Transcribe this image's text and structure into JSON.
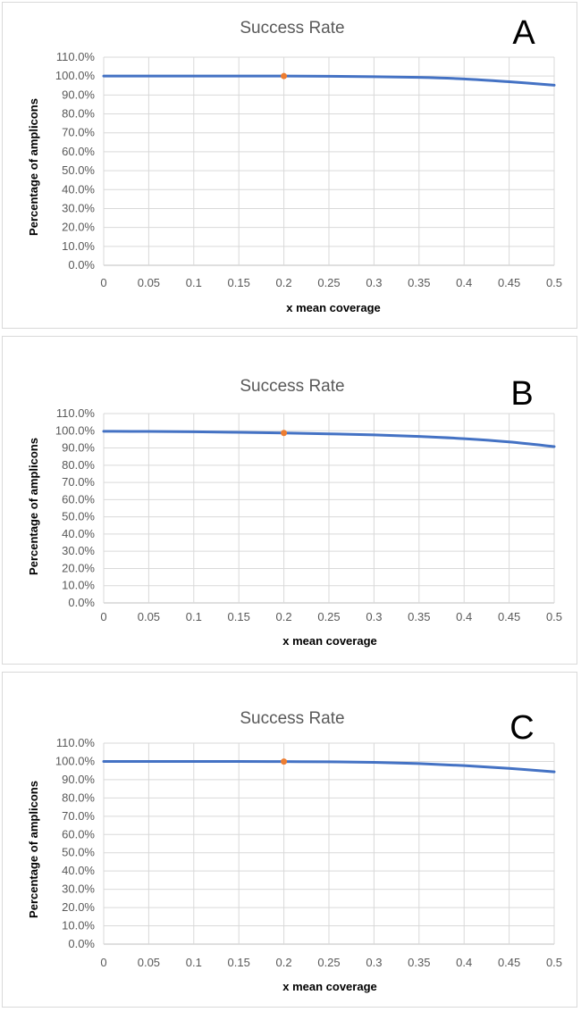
{
  "colors": {
    "series": "#4472C4",
    "marker": "#ED7D31"
  },
  "chart_data": [
    {
      "type": "line",
      "panel_letter": "A",
      "title": "Success Rate",
      "xlabel": "x mean coverage",
      "ylabel": "Percentage of amplicons",
      "xlim": [
        0,
        0.5
      ],
      "ylim": [
        0,
        1.1
      ],
      "xticks": [
        "0",
        "0.05",
        "0.1",
        "0.15",
        "0.2",
        "0.25",
        "0.3",
        "0.35",
        "0.4",
        "0.45",
        "0.5"
      ],
      "yticks": [
        "0.0%",
        "10.0%",
        "20.0%",
        "30.0%",
        "40.0%",
        "50.0%",
        "60.0%",
        "70.0%",
        "80.0%",
        "90.0%",
        "100.0%",
        "110.0%"
      ],
      "grid": true,
      "series": [
        {
          "name": "Success rate",
          "x": [
            0,
            0.05,
            0.1,
            0.15,
            0.2,
            0.25,
            0.3,
            0.35,
            0.4,
            0.45,
            0.5
          ],
          "y": [
            1.0,
            1.0,
            1.0,
            1.0,
            1.0,
            0.999,
            0.997,
            0.993,
            0.985,
            0.97,
            0.952
          ]
        }
      ],
      "highlight_point": {
        "x": 0.2,
        "y": 1.0
      }
    },
    {
      "type": "line",
      "panel_letter": "B",
      "title": "Success Rate",
      "xlabel": "x mean coverage",
      "ylabel": "Percentage of amplicons",
      "xlim": [
        0,
        0.5
      ],
      "ylim": [
        0,
        1.1
      ],
      "xticks": [
        "0",
        "0.05",
        "0.1",
        "0.15",
        "0.2",
        "0.25",
        "0.3",
        "0.35",
        "0.4",
        "0.45",
        "0.5"
      ],
      "yticks": [
        "0.0%",
        "10.0%",
        "20.0%",
        "30.0%",
        "40.0%",
        "50.0%",
        "60.0%",
        "70.0%",
        "80.0%",
        "90.0%",
        "100.0%",
        "110.0%"
      ],
      "grid": true,
      "series": [
        {
          "name": "Success rate",
          "x": [
            0,
            0.05,
            0.1,
            0.15,
            0.2,
            0.25,
            0.3,
            0.35,
            0.4,
            0.45,
            0.5
          ],
          "y": [
            0.997,
            0.996,
            0.994,
            0.991,
            0.987,
            0.982,
            0.976,
            0.967,
            0.954,
            0.935,
            0.908
          ]
        }
      ],
      "highlight_point": {
        "x": 0.2,
        "y": 0.987
      }
    },
    {
      "type": "line",
      "panel_letter": "C",
      "title": "Success Rate",
      "xlabel": "x mean coverage",
      "ylabel": "Percentage of amplicons",
      "xlim": [
        0,
        0.5
      ],
      "ylim": [
        0,
        1.1
      ],
      "xticks": [
        "0",
        "0.05",
        "0.1",
        "0.15",
        "0.2",
        "0.25",
        "0.3",
        "0.35",
        "0.4",
        "0.45",
        "0.5"
      ],
      "yticks": [
        "0.0%",
        "10.0%",
        "20.0%",
        "30.0%",
        "40.0%",
        "50.0%",
        "60.0%",
        "70.0%",
        "80.0%",
        "90.0%",
        "100.0%",
        "110.0%"
      ],
      "grid": true,
      "series": [
        {
          "name": "Success rate",
          "x": [
            0,
            0.05,
            0.1,
            0.15,
            0.2,
            0.25,
            0.3,
            0.35,
            0.4,
            0.45,
            0.5
          ],
          "y": [
            1.0,
            1.0,
            1.0,
            1.0,
            0.999,
            0.998,
            0.995,
            0.988,
            0.977,
            0.962,
            0.943
          ]
        }
      ],
      "highlight_point": {
        "x": 0.2,
        "y": 0.999
      }
    }
  ]
}
